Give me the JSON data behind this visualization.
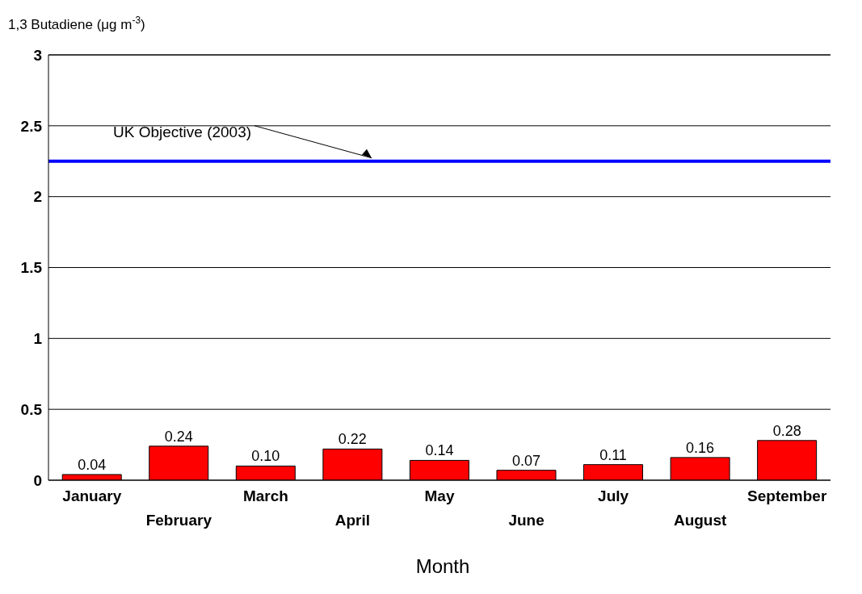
{
  "chart_data": {
    "type": "bar",
    "ylabel": "1,3 Butadiene (μg m$^{-3}$)",
    "xlabel": "Month",
    "categories": [
      "January",
      "February",
      "March",
      "April",
      "May",
      "June",
      "July",
      "August",
      "September"
    ],
    "values": [
      0.04,
      0.24,
      0.1,
      0.22,
      0.14,
      0.07,
      0.11,
      0.16,
      0.28
    ],
    "value_labels": [
      "0.04",
      "0.24",
      "0.10",
      "0.22",
      "0.14",
      "0.07",
      "0.11",
      "0.16",
      "0.28"
    ],
    "color": "#ff0000",
    "ylim": [
      0,
      3
    ],
    "yticks": [
      0,
      0.5,
      1,
      1.5,
      2,
      2.5,
      3
    ],
    "grid": "y",
    "ref_lines": [
      {
        "axis": "y",
        "value": 2.25,
        "label": "UK Objective (2003)",
        "color": "#0000ff",
        "line_style": "solid"
      }
    ]
  }
}
